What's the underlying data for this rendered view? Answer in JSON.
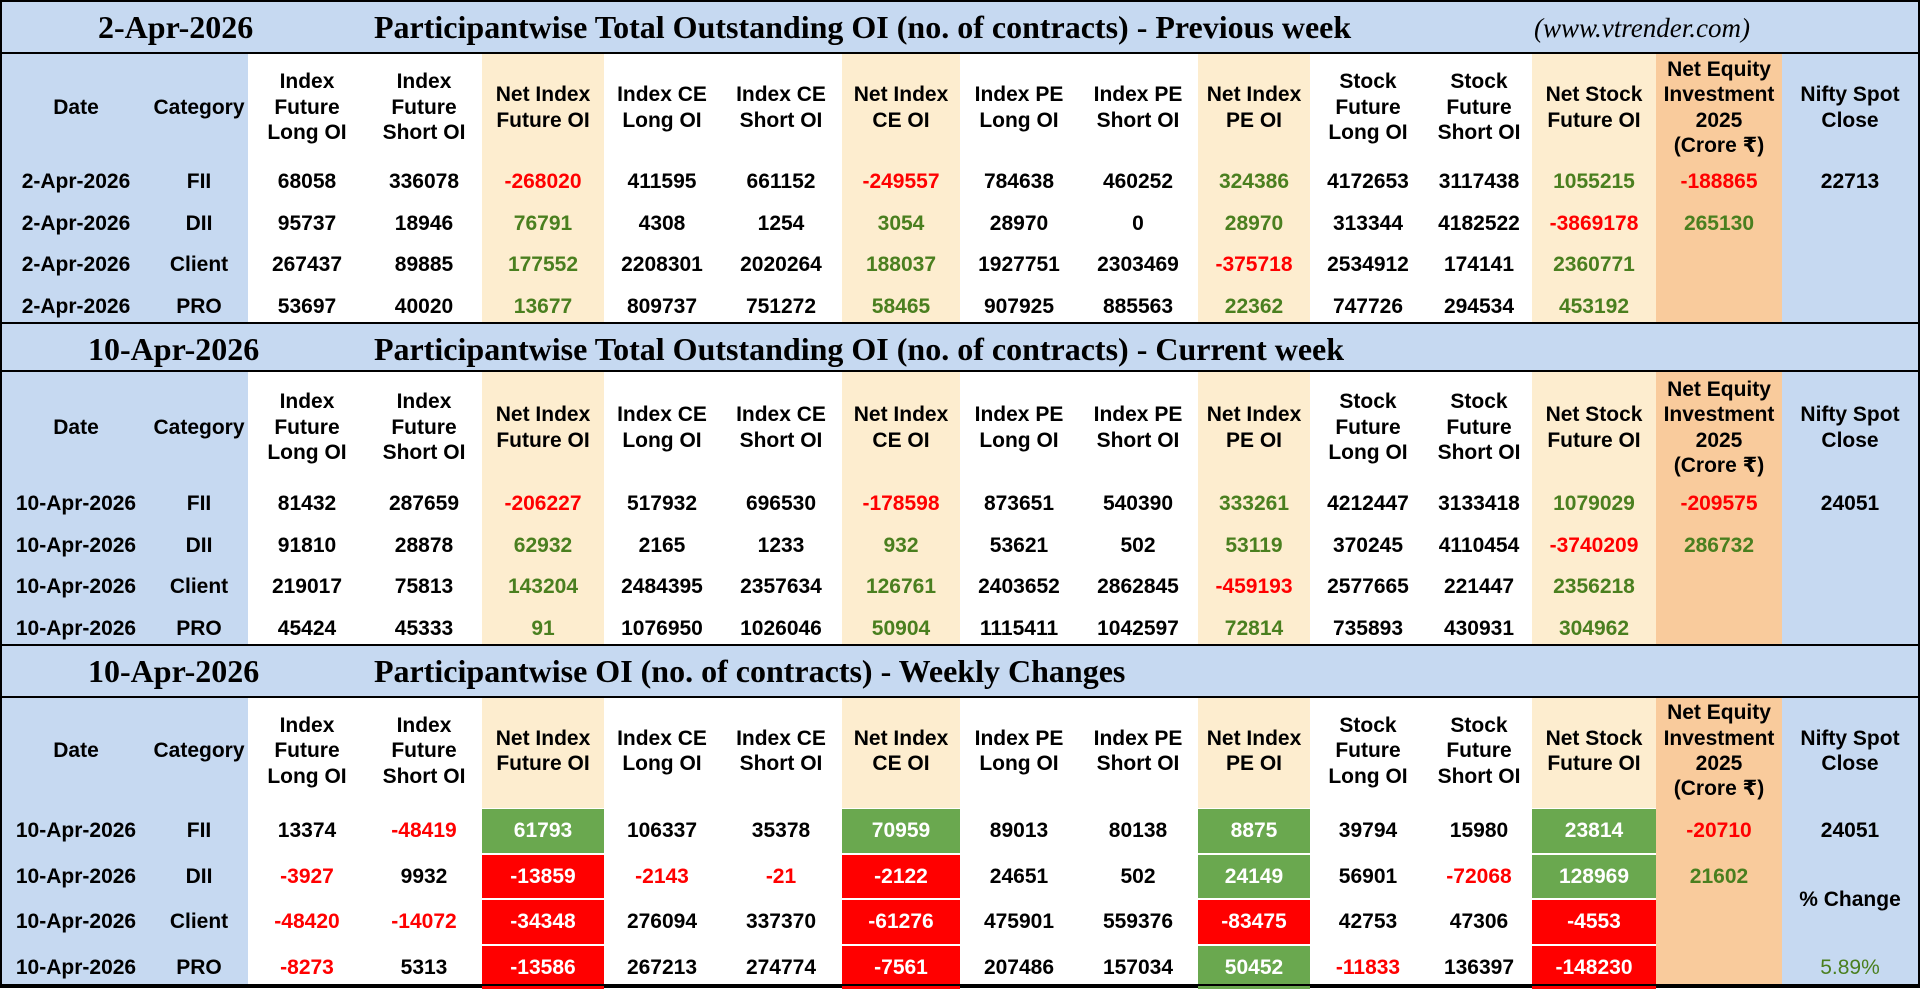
{
  "site": "(www.vtrender.com)",
  "columns": [
    "Date",
    "Category",
    "Index\nFuture\nLong OI",
    "Index\nFuture\nShort OI",
    "Net Index\nFuture OI",
    "Index CE\nLong OI",
    "Index CE\nShort OI",
    "Net Index\nCE OI",
    "Index PE\nLong OI",
    "Index PE\nShort OI",
    "Net Index\nPE OI",
    "Stock\nFuture\nLong OI",
    "Stock\nFuture\nShort OI",
    "Net Stock\nFuture OI",
    "Net Equity\nInvestment\n2025\n(Crore ₹)",
    "Nifty Spot\nClose"
  ],
  "colors": {
    "header_blue": "#c6d9f1",
    "net_column_tan": "#fdedcf",
    "equity_orange": "#f9cb9c",
    "positive_green_text": "#4a7f1f",
    "negative_red_text": "#ff0000",
    "positive_green_fill": "#6aa84f",
    "negative_red_fill": "#ff0000"
  },
  "sections": [
    {
      "date": "2-Apr-2026",
      "title": "Participantwise Total Outstanding OI (no. of contracts) - Previous week",
      "rows": [
        {
          "date": "2-Apr-2026",
          "category": "FII",
          "values": [
            "68058",
            "336078",
            "-268020",
            "411595",
            "661152",
            "-249557",
            "784638",
            "460252",
            "324386",
            "4172653",
            "3117438",
            "1055215",
            "-188865",
            "22713"
          ]
        },
        {
          "date": "2-Apr-2026",
          "category": "DII",
          "values": [
            "95737",
            "18946",
            "76791",
            "4308",
            "1254",
            "3054",
            "28970",
            "0",
            "28970",
            "313344",
            "4182522",
            "-3869178",
            "265130",
            ""
          ]
        },
        {
          "date": "2-Apr-2026",
          "category": "Client",
          "values": [
            "267437",
            "89885",
            "177552",
            "2208301",
            "2020264",
            "188037",
            "1927751",
            "2303469",
            "-375718",
            "2534912",
            "174141",
            "2360771",
            "",
            ""
          ]
        },
        {
          "date": "2-Apr-2026",
          "category": "PRO",
          "values": [
            "53697",
            "40020",
            "13677",
            "809737",
            "751272",
            "58465",
            "907925",
            "885563",
            "22362",
            "747726",
            "294534",
            "453192",
            "",
            ""
          ]
        }
      ]
    },
    {
      "date": "10-Apr-2026",
      "title": "Participantwise Total Outstanding OI (no. of contracts) - Current week",
      "rows": [
        {
          "date": "10-Apr-2026",
          "category": "FII",
          "values": [
            "81432",
            "287659",
            "-206227",
            "517932",
            "696530",
            "-178598",
            "873651",
            "540390",
            "333261",
            "4212447",
            "3133418",
            "1079029",
            "-209575",
            "24051"
          ]
        },
        {
          "date": "10-Apr-2026",
          "category": "DII",
          "values": [
            "91810",
            "28878",
            "62932",
            "2165",
            "1233",
            "932",
            "53621",
            "502",
            "53119",
            "370245",
            "4110454",
            "-3740209",
            "286732",
            ""
          ]
        },
        {
          "date": "10-Apr-2026",
          "category": "Client",
          "values": [
            "219017",
            "75813",
            "143204",
            "2484395",
            "2357634",
            "126761",
            "2403652",
            "2862845",
            "-459193",
            "2577665",
            "221447",
            "2356218",
            "",
            ""
          ]
        },
        {
          "date": "10-Apr-2026",
          "category": "PRO",
          "values": [
            "45424",
            "45333",
            "91",
            "1076950",
            "1026046",
            "50904",
            "1115411",
            "1042597",
            "72814",
            "735893",
            "430931",
            "304962",
            "",
            ""
          ]
        }
      ]
    },
    {
      "date": "10-Apr-2026",
      "title": "Participantwise OI (no. of contracts) - Weekly Changes",
      "rows": [
        {
          "date": "10-Apr-2026",
          "category": "FII",
          "values": [
            "13374",
            "-48419",
            "61793",
            "106337",
            "35378",
            "70959",
            "89013",
            "80138",
            "8875",
            "39794",
            "15980",
            "23814",
            "-20710",
            "24051"
          ]
        },
        {
          "date": "10-Apr-2026",
          "category": "DII",
          "values": [
            "-3927",
            "9932",
            "-13859",
            "-2143",
            "-21",
            "-2122",
            "24651",
            "502",
            "24149",
            "56901",
            "-72068",
            "128969",
            "21602",
            ""
          ]
        },
        {
          "date": "10-Apr-2026",
          "category": "Client",
          "values": [
            "-48420",
            "-14072",
            "-34348",
            "276094",
            "337370",
            "-61276",
            "475901",
            "559376",
            "-83475",
            "42753",
            "47306",
            "-4553",
            "",
            "% Change"
          ]
        },
        {
          "date": "10-Apr-2026",
          "category": "PRO",
          "values": [
            "-8273",
            "5313",
            "-13586",
            "267213",
            "274774",
            "-7561",
            "207486",
            "157034",
            "50452",
            "-11833",
            "136397",
            "-148230",
            "",
            "5.89%"
          ]
        }
      ]
    }
  ]
}
